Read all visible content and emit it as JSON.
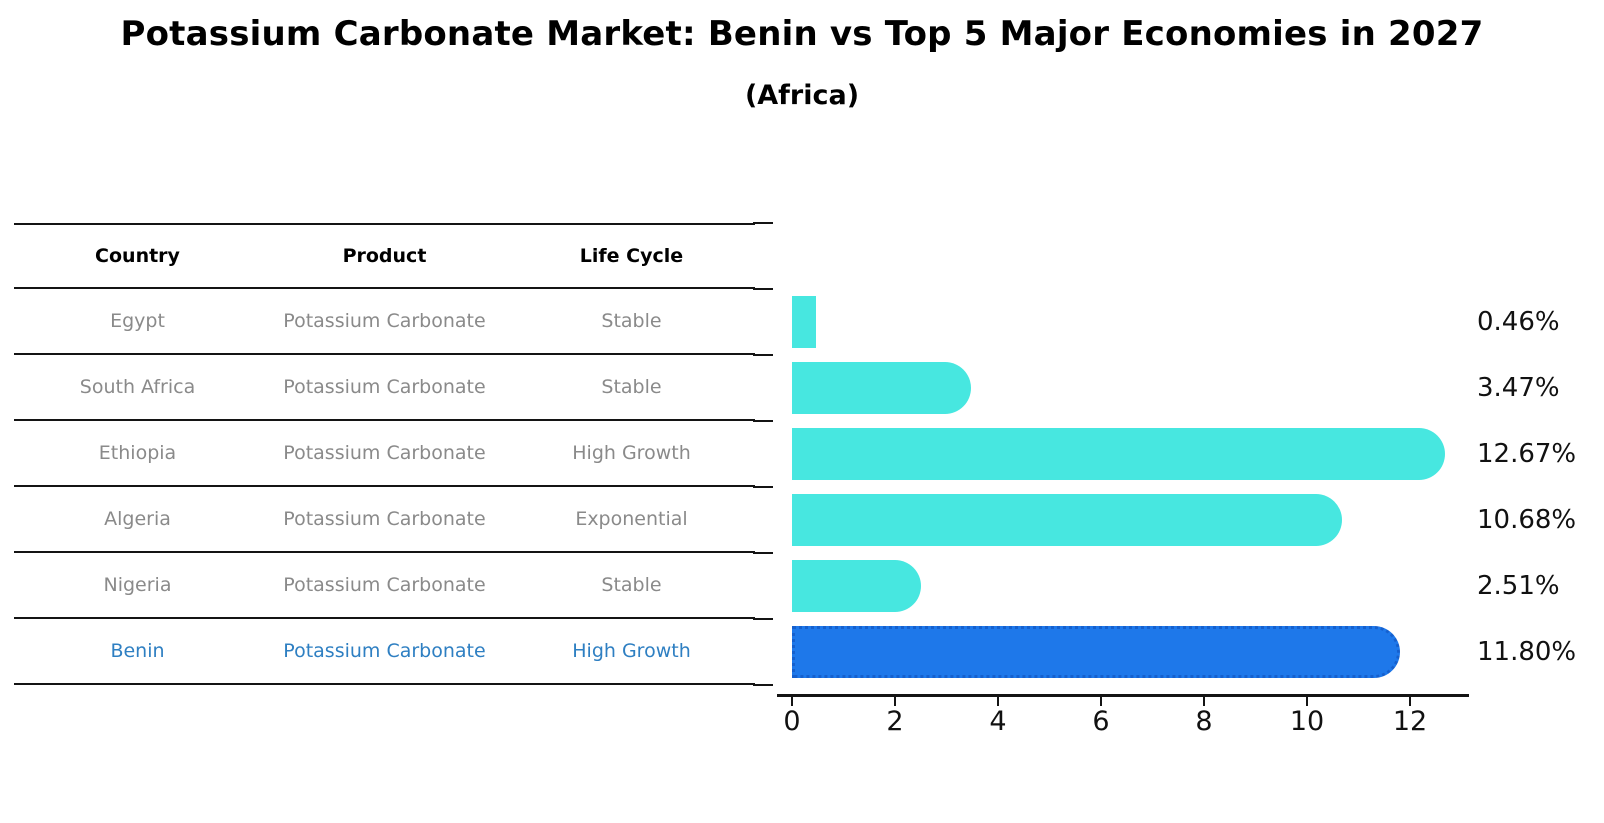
{
  "title": "Potassium Carbonate Market: Benin vs Top 5 Major Economies in 2027",
  "subtitle": "(Africa)",
  "table": {
    "headers": [
      "Country",
      "Product",
      "Life Cycle"
    ],
    "rows": [
      {
        "country": "Egypt",
        "product": "Potassium Carbonate",
        "life_cycle": "Stable"
      },
      {
        "country": "South Africa",
        "product": "Potassium Carbonate",
        "life_cycle": "Stable"
      },
      {
        "country": "Ethiopia",
        "product": "Potassium Carbonate",
        "life_cycle": "High Growth"
      },
      {
        "country": "Algeria",
        "product": "Potassium Carbonate",
        "life_cycle": "Exponential"
      },
      {
        "country": "Nigeria",
        "product": "Potassium Carbonate",
        "life_cycle": "Stable"
      },
      {
        "country": "Benin",
        "product": "Potassium Carbonate",
        "life_cycle": "High Growth"
      }
    ]
  },
  "chart_data": {
    "type": "bar",
    "orientation": "horizontal",
    "title": "Potassium Carbonate Market: Benin vs Top 5 Major Economies in 2027",
    "subtitle": "(Africa)",
    "categories": [
      "Egypt",
      "South Africa",
      "Ethiopia",
      "Algeria",
      "Nigeria",
      "Benin"
    ],
    "values": [
      0.46,
      3.47,
      12.67,
      10.68,
      2.51,
      11.8
    ],
    "value_labels": [
      "0.46%",
      "3.47%",
      "12.67%",
      "10.68%",
      "2.51%",
      "11.80%"
    ],
    "x_ticks": [
      0,
      2,
      4,
      6,
      8,
      10,
      12
    ],
    "xlim": [
      0,
      13.2
    ],
    "grid": false,
    "legend": null,
    "bar_color": "#47E7E0",
    "highlight_index": 5,
    "highlight_color": "#1E78EA",
    "highlight_border_color": "#1560CE",
    "highlight_text_color": "#2E7FC2",
    "table_text_color": "#8A8A8A"
  }
}
